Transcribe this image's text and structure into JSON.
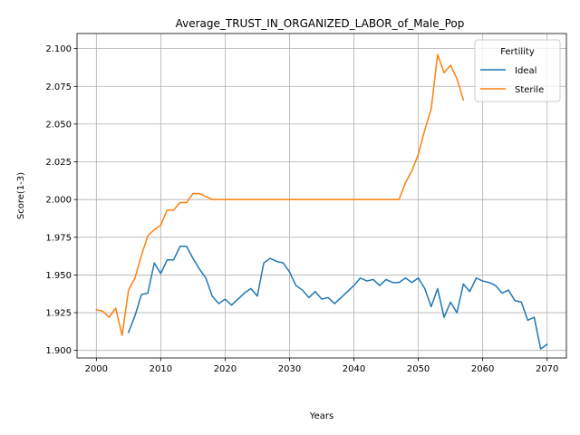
{
  "chart_data": {
    "type": "line",
    "title": "Average_TRUST_IN_ORGANIZED_LABOR_of_Male_Pop",
    "xlabel": "Years",
    "ylabel": "Score(1-3)",
    "xlim": [
      1997,
      2073
    ],
    "ylim": [
      1.895,
      2.11
    ],
    "xticks": [
      2000,
      2010,
      2020,
      2030,
      2040,
      2050,
      2060,
      2070
    ],
    "xtick_labels": [
      "2000",
      "2010",
      "2020",
      "2030",
      "2040",
      "2050",
      "2060",
      "2070"
    ],
    "yticks": [
      1.9,
      1.925,
      1.95,
      1.975,
      2.0,
      2.025,
      2.05,
      2.075,
      2.1
    ],
    "ytick_labels": [
      "1.900",
      "1.925",
      "1.950",
      "1.975",
      "2.000",
      "2.025",
      "2.050",
      "2.075",
      "2.100"
    ],
    "grid": true,
    "legend": {
      "title": "Fertility",
      "position": "top-right"
    },
    "series": [
      {
        "name": "Ideal",
        "color": "#1f77b4",
        "x": [
          2005,
          2006,
          2007,
          2008,
          2009,
          2010,
          2011,
          2012,
          2013,
          2014,
          2015,
          2016,
          2017,
          2018,
          2019,
          2020,
          2021,
          2022,
          2023,
          2024,
          2025,
          2026,
          2027,
          2028,
          2029,
          2030,
          2031,
          2032,
          2033,
          2034,
          2035,
          2036,
          2037,
          2038,
          2039,
          2040,
          2041,
          2042,
          2043,
          2044,
          2045,
          2046,
          2047,
          2048,
          2049,
          2050,
          2051,
          2052,
          2053,
          2054,
          2055,
          2056,
          2057,
          2058,
          2059,
          2060,
          2061,
          2062,
          2063,
          2064,
          2065,
          2066,
          2067,
          2068,
          2069,
          2070
        ],
        "y": [
          1.912,
          1.923,
          1.937,
          1.938,
          1.958,
          1.951,
          1.96,
          1.96,
          1.969,
          1.969,
          1.961,
          1.954,
          1.948,
          1.936,
          1.931,
          1.934,
          1.93,
          1.934,
          1.938,
          1.941,
          1.936,
          1.958,
          1.961,
          1.959,
          1.958,
          1.952,
          1.943,
          1.94,
          1.935,
          1.939,
          1.934,
          1.935,
          1.931,
          1.935,
          1.939,
          1.943,
          1.948,
          1.946,
          1.947,
          1.943,
          1.947,
          1.945,
          1.945,
          1.948,
          1.945,
          1.948,
          1.941,
          1.929,
          1.941,
          1.922,
          1.932,
          1.925,
          1.944,
          1.939,
          1.948,
          1.946,
          1.945,
          1.943,
          1.938,
          1.94,
          1.933,
          1.932,
          1.92,
          1.922,
          1.901,
          1.904
        ]
      },
      {
        "name": "Sterile",
        "color": "#ff7f0e",
        "x": [
          2000,
          2001,
          2002,
          2003,
          2004,
          2005,
          2006,
          2007,
          2008,
          2009,
          2010,
          2011,
          2012,
          2013,
          2014,
          2015,
          2016,
          2017,
          2018,
          2019,
          2020,
          2021,
          2022,
          2023,
          2024,
          2025,
          2026,
          2027,
          2028,
          2029,
          2030,
          2031,
          2032,
          2033,
          2034,
          2035,
          2036,
          2037,
          2038,
          2039,
          2040,
          2041,
          2042,
          2043,
          2044,
          2045,
          2046,
          2047,
          2048,
          2049,
          2050,
          2051,
          2052,
          2053,
          2054,
          2055,
          2056,
          2057
        ],
        "y": [
          1.927,
          1.926,
          1.922,
          1.928,
          1.91,
          1.94,
          1.948,
          1.963,
          1.976,
          1.98,
          1.983,
          1.993,
          1.993,
          1.998,
          1.998,
          2.004,
          2.004,
          2.002,
          2.0,
          2.0,
          2.0,
          2.0,
          2.0,
          2.0,
          2.0,
          2.0,
          2.0,
          2.0,
          2.0,
          2.0,
          2.0,
          2.0,
          2.0,
          2.0,
          2.0,
          2.0,
          2.0,
          2.0,
          2.0,
          2.0,
          2.0,
          2.0,
          2.0,
          2.0,
          2.0,
          2.0,
          2.0,
          2.0,
          2.011,
          2.019,
          2.03,
          2.046,
          2.06,
          2.096,
          2.084,
          2.089,
          2.08,
          2.066
        ]
      }
    ]
  }
}
